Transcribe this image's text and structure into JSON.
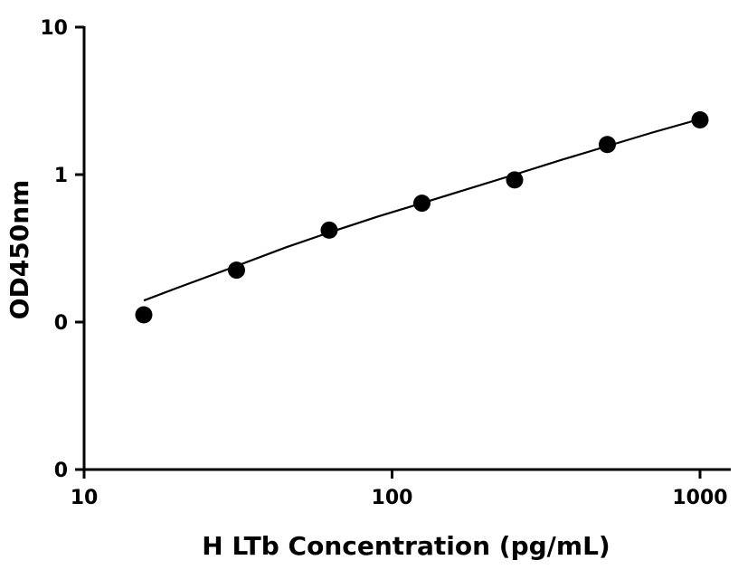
{
  "chart_data": {
    "type": "scatter",
    "xlabel": "H LTb Concentration (pg/mL)",
    "ylabel": "OD450nm",
    "x_scale": "log",
    "y_scale": "log",
    "xlim": [
      10,
      1000
    ],
    "ylim": [
      0.01,
      10
    ],
    "x_ticks": [
      {
        "value": 10,
        "label": "10"
      },
      {
        "value": 100,
        "label": "100"
      },
      {
        "value": 1000,
        "label": "1000"
      }
    ],
    "y_ticks": [
      {
        "value": 0.01,
        "label": "0"
      },
      {
        "value": 0.1,
        "label": "0"
      },
      {
        "value": 1,
        "label": "1"
      },
      {
        "value": 10,
        "label": "10"
      }
    ],
    "grid": false,
    "legend": "none",
    "series": [
      {
        "x": [
          15.625,
          31.25,
          62.5,
          125,
          250,
          500,
          1000
        ],
        "y": [
          0.112,
          0.225,
          0.42,
          0.64,
          0.92,
          1.6,
          2.35
        ],
        "marker": "circle",
        "color": "#000000"
      }
    ],
    "fit_curve": {
      "x": [
        15.625,
        20,
        31.25,
        45,
        62.5,
        90,
        125,
        180,
        250,
        360,
        500,
        700,
        1000
      ],
      "y": [
        0.14,
        0.17,
        0.24,
        0.32,
        0.405,
        0.52,
        0.64,
        0.81,
        1.0,
        1.27,
        1.56,
        1.93,
        2.38
      ],
      "color": "#000000"
    }
  }
}
